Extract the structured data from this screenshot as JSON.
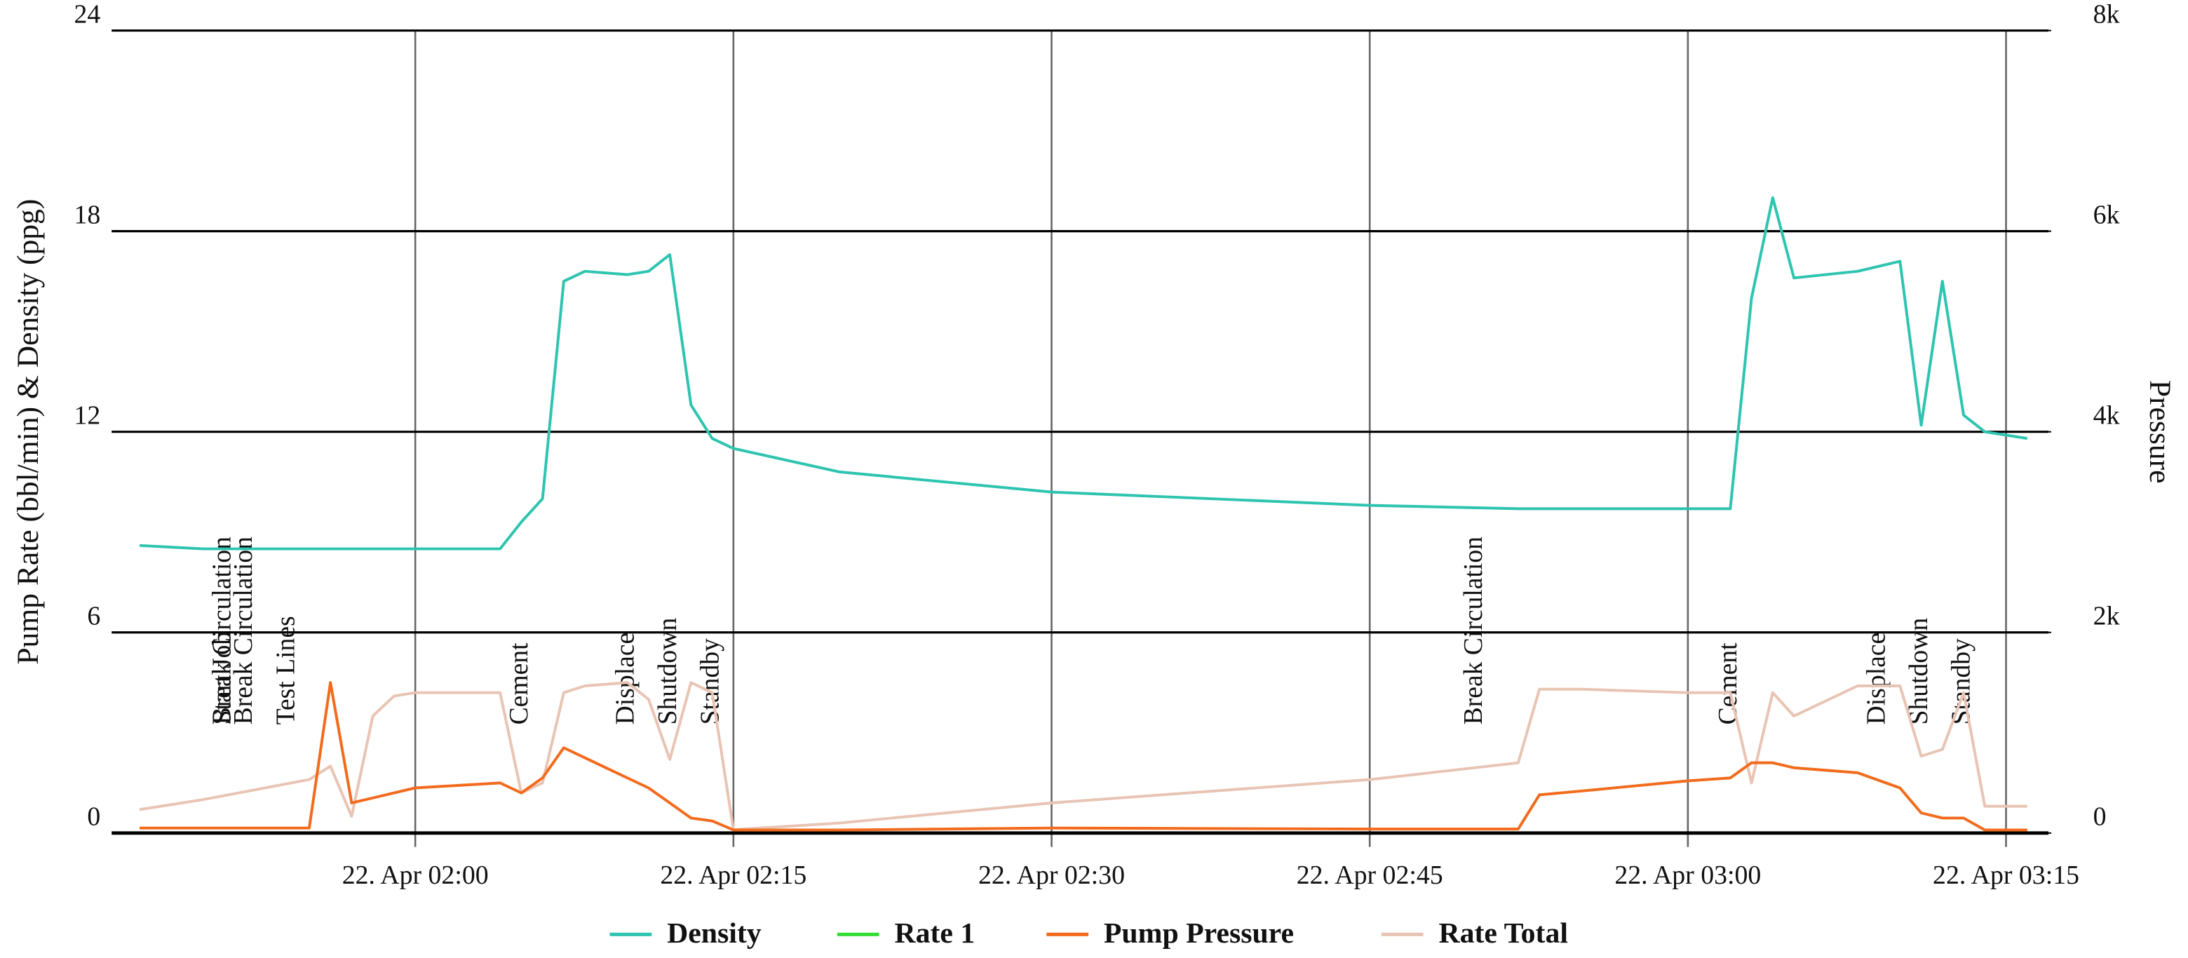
{
  "chart_data": {
    "type": "line",
    "y_label": "Pump Rate (bbl/min) & Density (ppg)",
    "y2_label": "Pressure",
    "x": [
      "22. Apr 01:47",
      "22. Apr 01:50",
      "22. Apr 01:55",
      "22. Apr 01:56",
      "22. Apr 01:57",
      "22. Apr 01:58",
      "22. Apr 01:59",
      "22. Apr 02:00",
      "22. Apr 02:04",
      "22. Apr 02:05",
      "22. Apr 02:06",
      "22. Apr 02:07",
      "22. Apr 02:08",
      "22. Apr 02:10",
      "22. Apr 02:11",
      "22. Apr 02:12",
      "22. Apr 02:13",
      "22. Apr 02:14",
      "22. Apr 02:15",
      "22. Apr 02:20",
      "22. Apr 02:30",
      "22. Apr 02:45",
      "22. Apr 02:52",
      "22. Apr 02:53",
      "22. Apr 02:55",
      "22. Apr 03:00",
      "22. Apr 03:02",
      "22. Apr 03:03",
      "22. Apr 03:04",
      "22. Apr 03:05",
      "22. Apr 03:08",
      "22. Apr 03:10",
      "22. Apr 03:11",
      "22. Apr 03:12",
      "22. Apr 03:13",
      "22. Apr 03:14",
      "22. Apr 03:16"
    ],
    "xlim": [
      "22. Apr 01:47",
      "22. Apr 03:17"
    ],
    "xticks": [
      "22. Apr 02:00",
      "22. Apr 02:15",
      "22. Apr 02:30",
      "22. Apr 02:45",
      "22. Apr 03:00",
      "22. Apr 03:15"
    ],
    "ylim": [
      0,
      24
    ],
    "yticks": [
      0,
      6,
      12,
      18,
      24
    ],
    "y2lim": [
      0,
      8000
    ],
    "y2ticks": [
      {
        "value": 0,
        "label": "0"
      },
      {
        "value": 2000,
        "label": "2k"
      },
      {
        "value": 4000,
        "label": "4k"
      },
      {
        "value": 6000,
        "label": "6k"
      },
      {
        "value": 8000,
        "label": "8k"
      }
    ],
    "grid": true,
    "legend": "bottom",
    "series": [
      {
        "name": "Density",
        "color": "#2ec4b0",
        "axis": "y",
        "values": [
          8.6,
          8.5,
          8.5,
          8.5,
          8.5,
          8.5,
          8.5,
          8.5,
          8.5,
          9.3,
          10,
          16.5,
          16.8,
          16.7,
          16.8,
          17.3,
          12.8,
          11.8,
          11.5,
          10.8,
          10.2,
          9.8,
          9.7,
          9.7,
          9.7,
          9.7,
          9.7,
          16,
          19,
          16.6,
          16.8,
          17.1,
          12.2,
          16.5,
          12.5,
          12,
          11.8
        ]
      },
      {
        "name": "Rate 1",
        "color": "#33dd33",
        "axis": "y",
        "values": [
          null,
          null,
          null,
          null,
          null,
          null,
          null,
          null,
          null,
          null,
          null,
          null,
          null,
          null,
          null,
          null,
          null,
          null,
          null,
          null,
          null,
          null,
          null,
          null,
          null,
          null,
          null,
          null,
          null,
          null,
          null,
          null,
          null,
          null,
          null,
          null,
          null
        ]
      },
      {
        "name": "Pump Pressure",
        "color": "#f26b1d",
        "axis": "y2",
        "values": [
          50,
          50,
          50,
          1500,
          300,
          350,
          400,
          450,
          500,
          400,
          550,
          850,
          750,
          550,
          450,
          300,
          150,
          120,
          30,
          30,
          50,
          40,
          40,
          380,
          420,
          520,
          550,
          700,
          700,
          650,
          600,
          450,
          200,
          150,
          150,
          30,
          30
        ]
      },
      {
        "name": "Rate Total",
        "color": "#e8c4b4",
        "axis": "y",
        "values": [
          0.7,
          1.0,
          1.6,
          2.0,
          0.5,
          3.5,
          4.1,
          4.2,
          4.2,
          1.2,
          1.5,
          4.2,
          4.4,
          4.5,
          4.0,
          2.2,
          4.5,
          4.2,
          0.1,
          0.3,
          0.9,
          1.6,
          2.1,
          4.3,
          4.3,
          4.2,
          4.2,
          1.5,
          4.2,
          3.5,
          4.4,
          4.4,
          2.3,
          2.5,
          4.2,
          0.8,
          0.8
        ]
      }
    ],
    "annotations": [
      {
        "x": "22. Apr 01:51",
        "text": "Start Job"
      },
      {
        "x": "22. Apr 01:51",
        "text": "Break Circulation"
      },
      {
        "x": "22. Apr 01:52",
        "text": "Break Circulation"
      },
      {
        "x": "22. Apr 01:54",
        "text": "Test Lines"
      },
      {
        "x": "22. Apr 02:05",
        "text": "Cement"
      },
      {
        "x": "22. Apr 02:10",
        "text": "Displace"
      },
      {
        "x": "22. Apr 02:12",
        "text": "Shutdown"
      },
      {
        "x": "22. Apr 02:14",
        "text": "Standby"
      },
      {
        "x": "22. Apr 02:50",
        "text": "Break Circulation"
      },
      {
        "x": "22. Apr 03:02",
        "text": "Cement"
      },
      {
        "x": "22. Apr 03:09",
        "text": "Displace"
      },
      {
        "x": "22. Apr 03:11",
        "text": "Shutdown"
      },
      {
        "x": "22. Apr 03:13",
        "text": "Standby"
      }
    ]
  }
}
